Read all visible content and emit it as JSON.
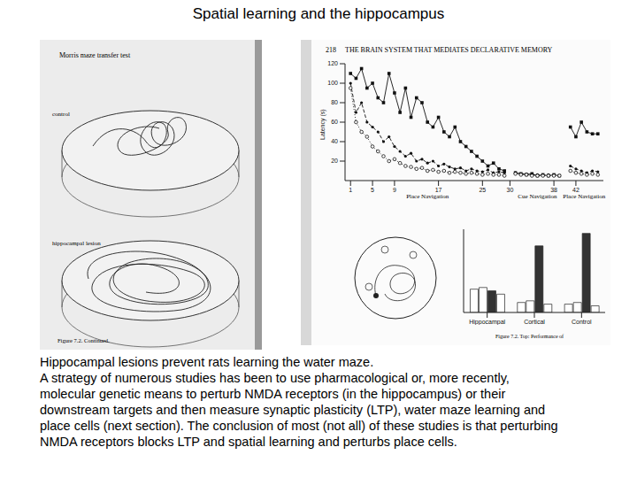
{
  "title": "Spatial learning and the hippocampus",
  "caption": [
    "Hippocampal lesions prevent rats learning the water maze.",
    "A strategy of numerous studies has been to use pharmacological or, more recently,",
    "molecular genetic means to perturb NMDA receptors (in the hippocampus) or their",
    "downstream targets and then measure synaptic plasticity (LTP), water maze learning and",
    "place cells (next section). The conclusion of most (not all) of these studies is that perturbing",
    "NMDA receptors blocks LTP and spatial learning and perturbs place cells."
  ],
  "left_figure": {
    "heading": "Morris maze transfer test",
    "panels": [
      "control",
      "hippocampal lesion"
    ],
    "caption": "Figure 7.2. Continued."
  },
  "right_figure": {
    "page": 218,
    "running_head": "THE BRAIN SYSTEM THAT MEDIATES DECLARATIVE MEMORY",
    "caption": "Figure 7.2. Top: Performance of"
  },
  "chart_data": [
    {
      "type": "line",
      "y_label": "Latency (s)",
      "x": [
        1,
        2,
        3,
        4,
        5,
        6,
        7,
        8,
        9,
        10,
        11,
        12,
        13,
        14,
        15,
        16,
        17,
        18,
        19,
        20,
        21,
        22,
        23,
        24,
        25,
        26,
        27,
        28,
        29,
        30,
        31,
        32,
        33,
        34,
        35,
        36,
        37,
        38,
        39,
        40,
        41,
        42,
        43,
        44,
        45,
        46
      ],
      "xlim": [
        0,
        47
      ],
      "xticks": [
        1,
        5,
        9,
        17,
        25,
        30,
        38,
        42
      ],
      "ylim": [
        0,
        120
      ],
      "yticks": [
        20,
        40,
        60,
        80,
        100,
        120
      ],
      "sections": [
        {
          "label": "Place Navigation",
          "from": 1,
          "to": 29
        },
        {
          "label": "Cue Navigation",
          "from": 31,
          "to": 39
        },
        {
          "label": "Place Navigation",
          "from": 41,
          "to": 46
        }
      ],
      "series": [
        {
          "color": "#111111",
          "marker": "square",
          "line_style": "solid",
          "values": [
            110,
            105,
            115,
            95,
            100,
            85,
            80,
            110,
            90,
            70,
            95,
            65,
            85,
            80,
            60,
            55,
            65,
            50,
            45,
            55,
            40,
            35,
            30,
            25,
            20,
            15,
            18,
            12,
            10,
            null,
            8,
            7,
            6,
            7,
            5,
            6,
            5,
            6,
            5,
            null,
            55,
            45,
            60,
            50,
            48,
            48
          ]
        },
        {
          "color": "#111111",
          "marker": "circle",
          "line_style": "dashed",
          "values": [
            100,
            70,
            80,
            60,
            55,
            50,
            40,
            45,
            35,
            30,
            25,
            28,
            20,
            22,
            18,
            20,
            15,
            17,
            14,
            12,
            13,
            10,
            12,
            10,
            9,
            11,
            8,
            9,
            8,
            null,
            8,
            7,
            7,
            6,
            6,
            5,
            6,
            5,
            5,
            null,
            15,
            12,
            10,
            8,
            10,
            9
          ]
        },
        {
          "color": "#111111",
          "marker": "open_circle",
          "line_style": "dotted",
          "values": [
            95,
            60,
            50,
            45,
            35,
            30,
            25,
            20,
            22,
            18,
            15,
            14,
            12,
            13,
            10,
            11,
            9,
            10,
            8,
            9,
            8,
            7,
            8,
            7,
            6,
            7,
            6,
            6,
            5,
            null,
            7,
            6,
            6,
            5,
            5,
            5,
            5,
            5,
            5,
            null,
            10,
            8,
            7,
            6,
            7,
            6
          ]
        }
      ]
    },
    {
      "type": "bar",
      "categories": [
        "Hippocampal",
        "Cortical",
        "Control"
      ],
      "ylim": [
        0,
        100
      ],
      "tick_labels": "x",
      "series": [
        {
          "color": "#ffffff",
          "values": [
            28,
            12,
            10
          ]
        },
        {
          "color": "#ffffff",
          "values": [
            30,
            14,
            12
          ]
        },
        {
          "color": "#333333",
          "values": [
            26,
            80,
            95
          ]
        },
        {
          "color": "#ffffff",
          "values": [
            22,
            10,
            8
          ]
        }
      ]
    }
  ]
}
